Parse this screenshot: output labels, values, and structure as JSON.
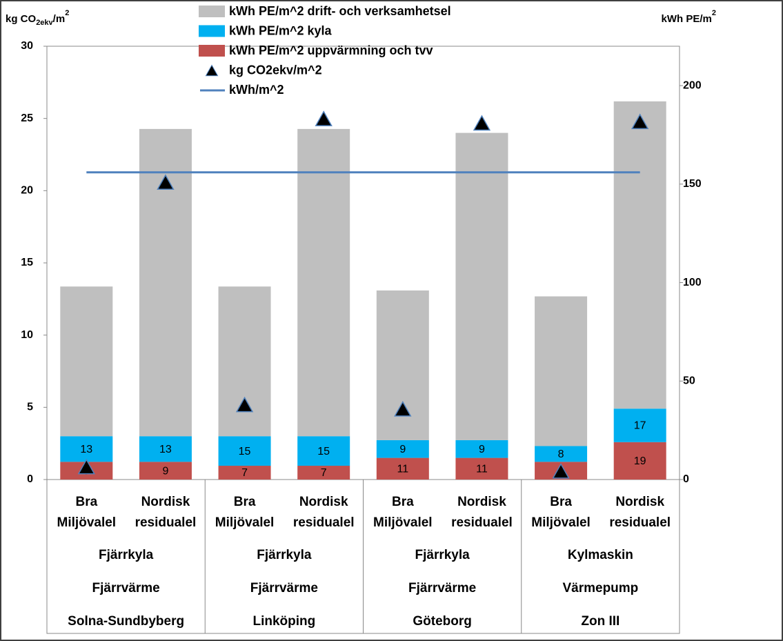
{
  "chart_data": {
    "type": "bar",
    "y_label": [
      "kg CO",
      "2ekv",
      "/m",
      "2"
    ],
    "y2_label": [
      "kWh PE/m",
      "2"
    ],
    "categories": [
      [
        "Bra",
        "Miljövalel"
      ],
      [
        "Nordisk",
        "residualel"
      ],
      [
        "Bra",
        "Miljövalel"
      ],
      [
        "Nordisk",
        "residualel"
      ],
      [
        "Bra",
        "Miljövalel"
      ],
      [
        "Nordisk",
        "residualel"
      ],
      [
        "Bra",
        "Miljövalel"
      ],
      [
        "Nordisk",
        "residualel"
      ]
    ],
    "groups": [
      [
        "Fjärrkyla",
        "Fjärrvärme",
        "Solna-Sundbyberg"
      ],
      [
        "Fjärrkyla",
        "Fjärrvärme",
        "Linköping"
      ],
      [
        "Fjärrkyla",
        "Fjärrvärme",
        "Göteborg"
      ],
      [
        "Kylmaskin",
        "Värmepump",
        "Zon III"
      ]
    ],
    "ylim": [
      0,
      30
    ],
    "yticks": [
      0,
      5,
      10,
      15,
      20,
      25,
      30
    ],
    "y2lim": [
      0,
      220
    ],
    "y2ticks": [
      0,
      50,
      100,
      150,
      200
    ],
    "series": [
      {
        "name": "kWh PE/m^2 drift- och verksamhetsel",
        "type": "bar",
        "axis": "y2",
        "color": "#bfbfbf",
        "data_labels": false,
        "values": [
          76,
          156,
          76,
          156,
          76,
          156,
          76,
          156
        ]
      },
      {
        "name": "kWh PE/m^2 kyla",
        "type": "bar",
        "axis": "y2",
        "color": "#00b0f0",
        "data_labels": true,
        "values": [
          13,
          13,
          15,
          15,
          9,
          9,
          8,
          17
        ]
      },
      {
        "name": "kWh PE/m^2 uppvärmning och tvv",
        "type": "bar",
        "axis": "y2",
        "color": "#c0504d",
        "data_labels": true,
        "values": [
          9,
          9,
          7,
          7,
          11,
          11,
          9,
          19
        ]
      },
      {
        "name": "kg CO2ekv/m^2",
        "type": "scatter",
        "axis": "y",
        "color": "#000000",
        "edge": "#4f81bd",
        "values": [
          0.8,
          20.5,
          5.1,
          24.9,
          4.8,
          24.6,
          0.5,
          24.7
        ]
      },
      {
        "name": "kWh/m^2",
        "type": "line",
        "axis": "y2",
        "color": "#4f81bd",
        "values": [
          156,
          156,
          156,
          156,
          156,
          156,
          156,
          156
        ]
      }
    ]
  }
}
